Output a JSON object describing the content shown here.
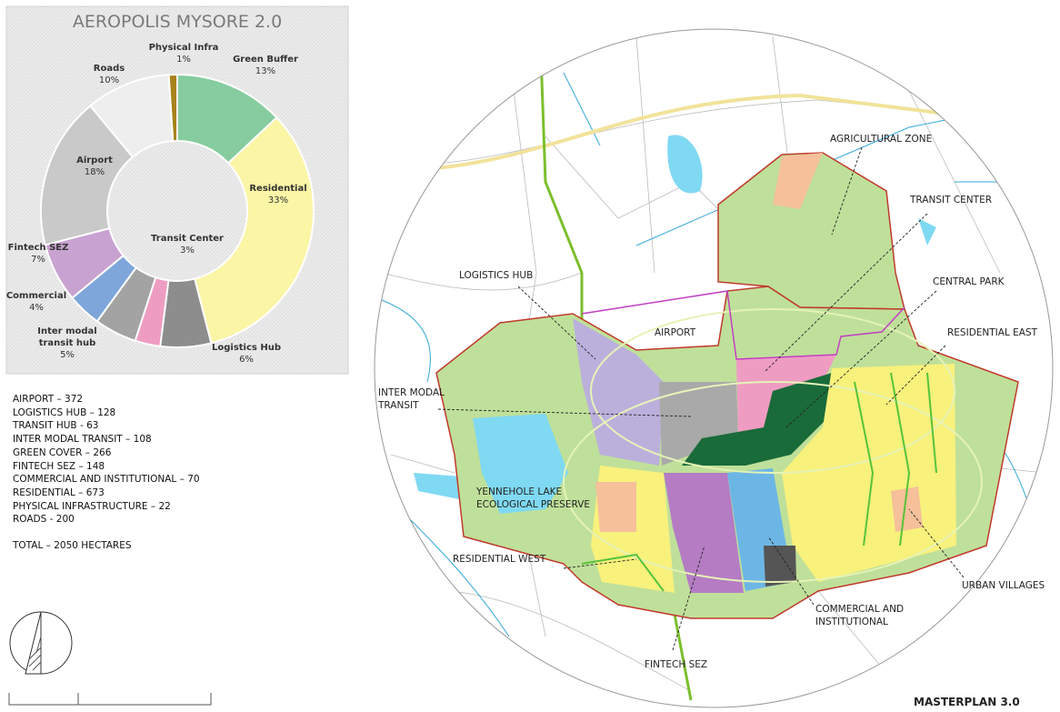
{
  "chart_data": {
    "type": "pie",
    "title": "AEROPOLIS MYSORE 2.0",
    "categories": [
      "Physical Infra",
      "Green Buffer",
      "Residential",
      "Logistics Hub",
      "Transit Center",
      "Inter modal transit hub",
      "Commercial",
      "Fintech SEZ",
      "Airport",
      "Roads"
    ],
    "values": [
      1,
      13,
      33,
      6,
      3,
      5,
      4,
      7,
      18,
      10
    ],
    "value_labels": [
      "1%",
      "13%",
      "33%",
      "6%",
      "3%",
      "5%",
      "4%",
      "7%",
      "18%",
      "10%"
    ],
    "colors": [
      "#a8831c",
      "#86cc9e",
      "#fbf5a6",
      "#8d8d8d",
      "#ef9cc2",
      "#a3a3a3",
      "#7ea6da",
      "#c8a2d0",
      "#c9c9c9",
      "#eeeeee"
    ],
    "donut": true
  },
  "area_list": [
    "AIRPORT – 372",
    "LOGISTICS HUB – 128",
    "TRANSIT HUB - 63",
    "INTER MODAL TRANSIT – 108",
    "GREEN COVER – 266",
    "FINTECH SEZ – 148",
    "COMMERCIAL AND INSTITUTIONAL – 70",
    "RESIDENTIAL – 673",
    "PHYSICAL INFRASTRUCTURE – 22",
    "ROADS - 200"
  ],
  "area_total": "TOTAL – 2050 HECTARES",
  "map": {
    "labels": [
      "AGRICULTURAL ZONE",
      "TRANSIT CENTER",
      "LOGISTICS HUB",
      "CENTRAL PARK",
      "AIRPORT",
      "RESIDENTIAL EAST",
      "INTER MODAL TRANSIT",
      "YENNEHOLE LAKE ECOLOGICAL PRESERVE",
      "RESIDENTIAL WEST",
      "URBAN VILLAGES",
      "COMMERCIAL AND INSTITUTIONAL",
      "FINTECH SEZ"
    ],
    "caption": "MASTERPLAN 3.0"
  }
}
